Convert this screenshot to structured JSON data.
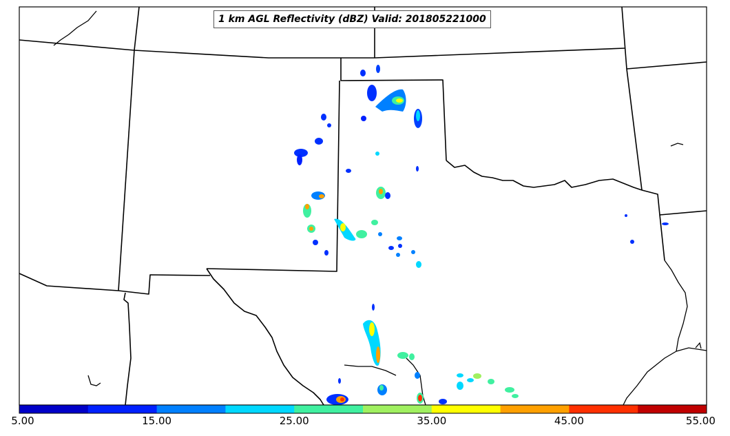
{
  "title": "1 km AGL Reflectivity (dBZ) Valid: 201805221000",
  "colorbar": {
    "tick_labels": [
      "5.00",
      "15.00",
      "25.00",
      "35.00",
      "45.00",
      "55.00"
    ],
    "colors": [
      "#0000c8",
      "#0020ff",
      "#0080ff",
      "#00d8ff",
      "#40f0a0",
      "#a0f060",
      "#ffff00",
      "#ffa000",
      "#ff3000",
      "#c00000"
    ]
  },
  "chart_data": {
    "type": "heatmap",
    "title": "1 km AGL Reflectivity (dBZ) Valid: 201805221000",
    "variable": "Reflectivity",
    "units": "dBZ",
    "level": "1 km AGL",
    "valid": "201805221000",
    "colorbar_range": [
      5,
      55
    ],
    "colorbar_step": 5,
    "colorbar_tick_values": [
      5,
      15,
      25,
      35,
      45,
      55
    ],
    "map_region": "Southern Plains (Texas, Oklahoma and surrounding states)"
  }
}
